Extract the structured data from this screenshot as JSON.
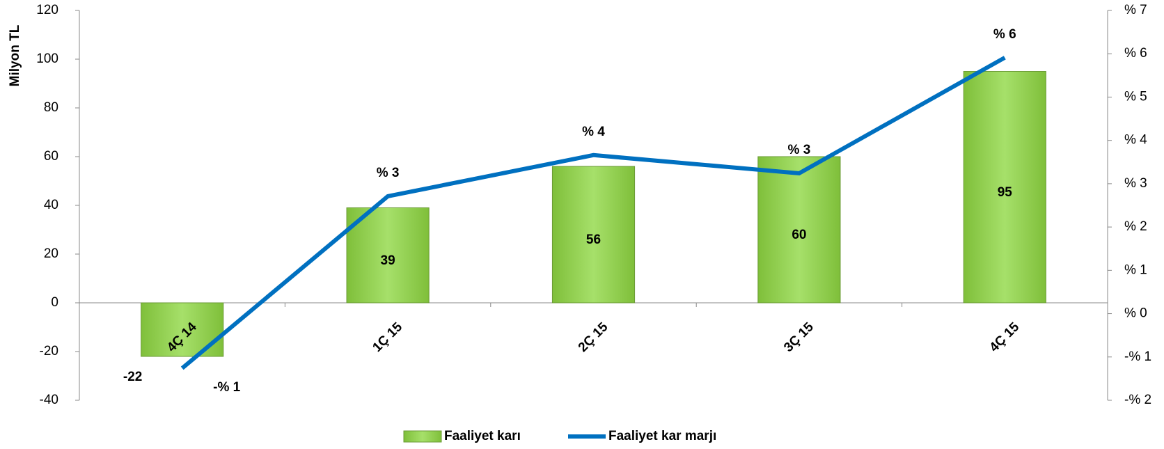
{
  "chart_data": {
    "type": "bar",
    "y_label": "Milyon TL",
    "categories": [
      "4Ç 14",
      "1Ç 15",
      "2Ç 15",
      "3Ç 15",
      "4Ç 15"
    ],
    "series": [
      {
        "name": "Faaliyet karı",
        "type": "bar",
        "color": "#92d050",
        "values": [
          -22,
          39,
          56,
          60,
          95
        ]
      },
      {
        "name": "Faaliyet kar marjı",
        "type": "line",
        "axis": "y2",
        "color": "#0070c0",
        "values": [
          -1.26,
          2.71,
          3.66,
          3.24,
          5.91
        ],
        "value_labels": [
          "-% 1",
          "% 3",
          "% 4",
          "% 3",
          "% 6"
        ]
      }
    ],
    "ylim": [
      -40,
      120
    ],
    "yticks": [
      -40,
      -20,
      0,
      20,
      40,
      60,
      80,
      100,
      120
    ],
    "y2lim": [
      -2,
      7
    ],
    "y2ticks": [
      {
        "value": -2,
        "label": "-% 2"
      },
      {
        "value": -1,
        "label": "-% 1"
      },
      {
        "value": 0,
        "label": "% 0"
      },
      {
        "value": 1,
        "label": "% 1"
      },
      {
        "value": 2,
        "label": "% 2"
      },
      {
        "value": 3,
        "label": "% 3"
      },
      {
        "value": 4,
        "label": "% 4"
      },
      {
        "value": 5,
        "label": "% 5"
      },
      {
        "value": 6,
        "label": "% 6"
      },
      {
        "value": 7,
        "label": "% 7"
      }
    ],
    "negative_color": "#ff0000",
    "legend": "bottom"
  }
}
